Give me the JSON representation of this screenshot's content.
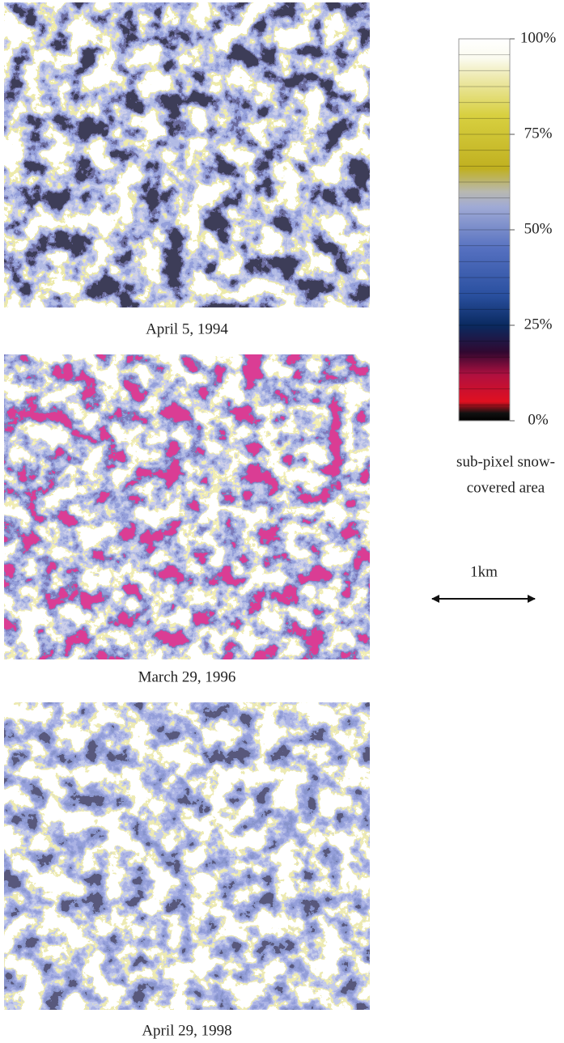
{
  "panels": [
    {
      "caption": "April 5, 1994"
    },
    {
      "caption": "March 29, 1996"
    },
    {
      "caption": "April 29, 1998"
    }
  ],
  "colorbar": {
    "range": [
      0,
      100
    ],
    "ticks": [
      {
        "value": 0,
        "label": "0%"
      },
      {
        "value": 25,
        "label": "25%"
      },
      {
        "value": 50,
        "label": "50%"
      },
      {
        "value": 75,
        "label": "75%"
      },
      {
        "value": 100,
        "label": "100%"
      }
    ],
    "label_lines": [
      "sub-pixel snow-",
      "covered area"
    ]
  },
  "scale_bar": {
    "label": "1km"
  }
}
